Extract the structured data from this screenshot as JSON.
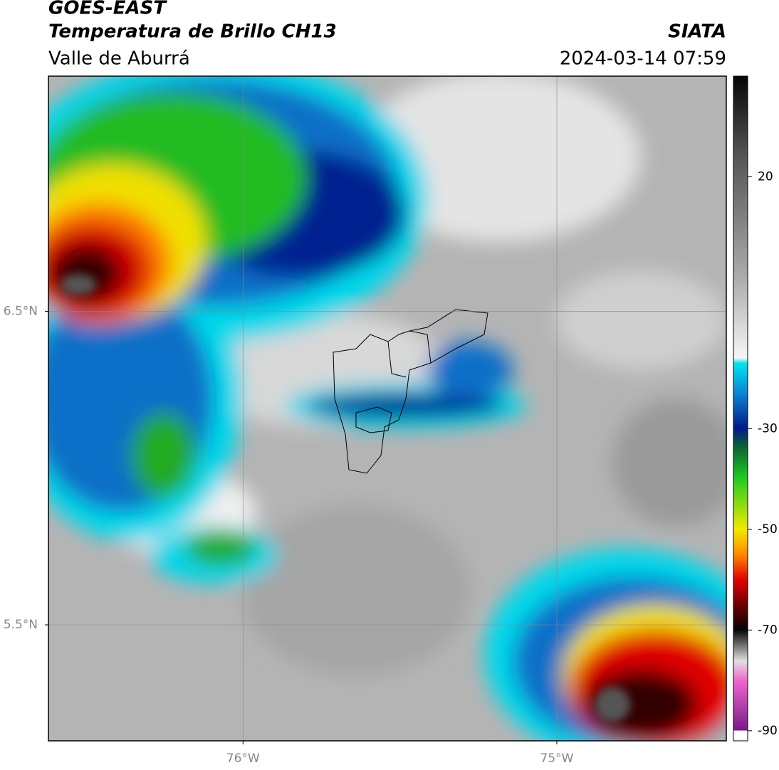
{
  "header": {
    "title": "GOES-EAST",
    "subtitle": "Temperatura de Brillo CH13",
    "region": "Valle de Aburrá",
    "source": "SIATA",
    "datetime": "2024-03-14 07:59"
  },
  "map": {
    "xlim": [
      -76.62,
      -74.46
    ],
    "ylim": [
      5.13,
      7.25
    ],
    "xticks": [
      {
        "value": -76,
        "label": "76°W"
      },
      {
        "value": -75,
        "label": "75°W"
      }
    ],
    "yticks": [
      {
        "value": 6.5,
        "label": "6.5°N"
      },
      {
        "value": 5.5,
        "label": "5.5°N"
      }
    ],
    "grid": true
  },
  "colorbar": {
    "lim": [
      -92,
      40
    ],
    "ticks": [
      20,
      -30,
      -50,
      -70,
      -90
    ]
  }
}
